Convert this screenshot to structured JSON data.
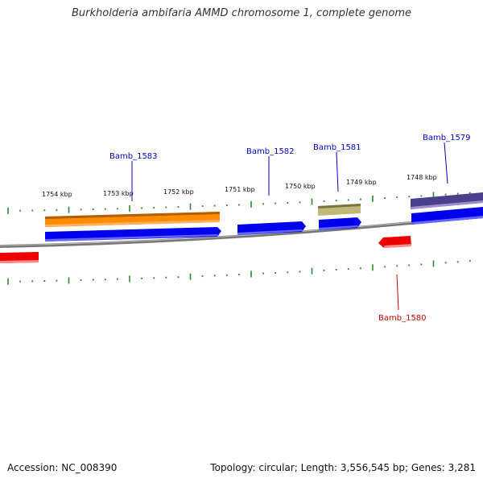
{
  "title": "Burkholderia ambifaria AMMD chromosome 1, complete genome",
  "footer": {
    "accession": "Accession: NC_008390",
    "topology": "Topology: circular; Length: 3,556,545 bp; Genes: 3,281"
  },
  "scale_labels": [
    "1754 kbp",
    "1753 kbp",
    "1752 kbp",
    "1751 kbp",
    "1750 kbp",
    "1749 kbp",
    "1748 kbp"
  ],
  "gene_labels": {
    "bamb_1583": "Bamb_1583",
    "bamb_1582": "Bamb_1582",
    "bamb_1581": "Bamb_1581",
    "bamb_1579": "Bamb_1579",
    "bamb_1580": "Bamb_1580"
  },
  "colors": {
    "forward_label": "#0000cc",
    "reverse_label": "#cc0000",
    "cds_blue": "#0000ee",
    "orange": "#ff8c00",
    "olive": "#b8b070",
    "purple": "#4a3f8c",
    "red": "#ee0000",
    "tick_green": "#2e8b2e",
    "backbone": "#888888"
  }
}
